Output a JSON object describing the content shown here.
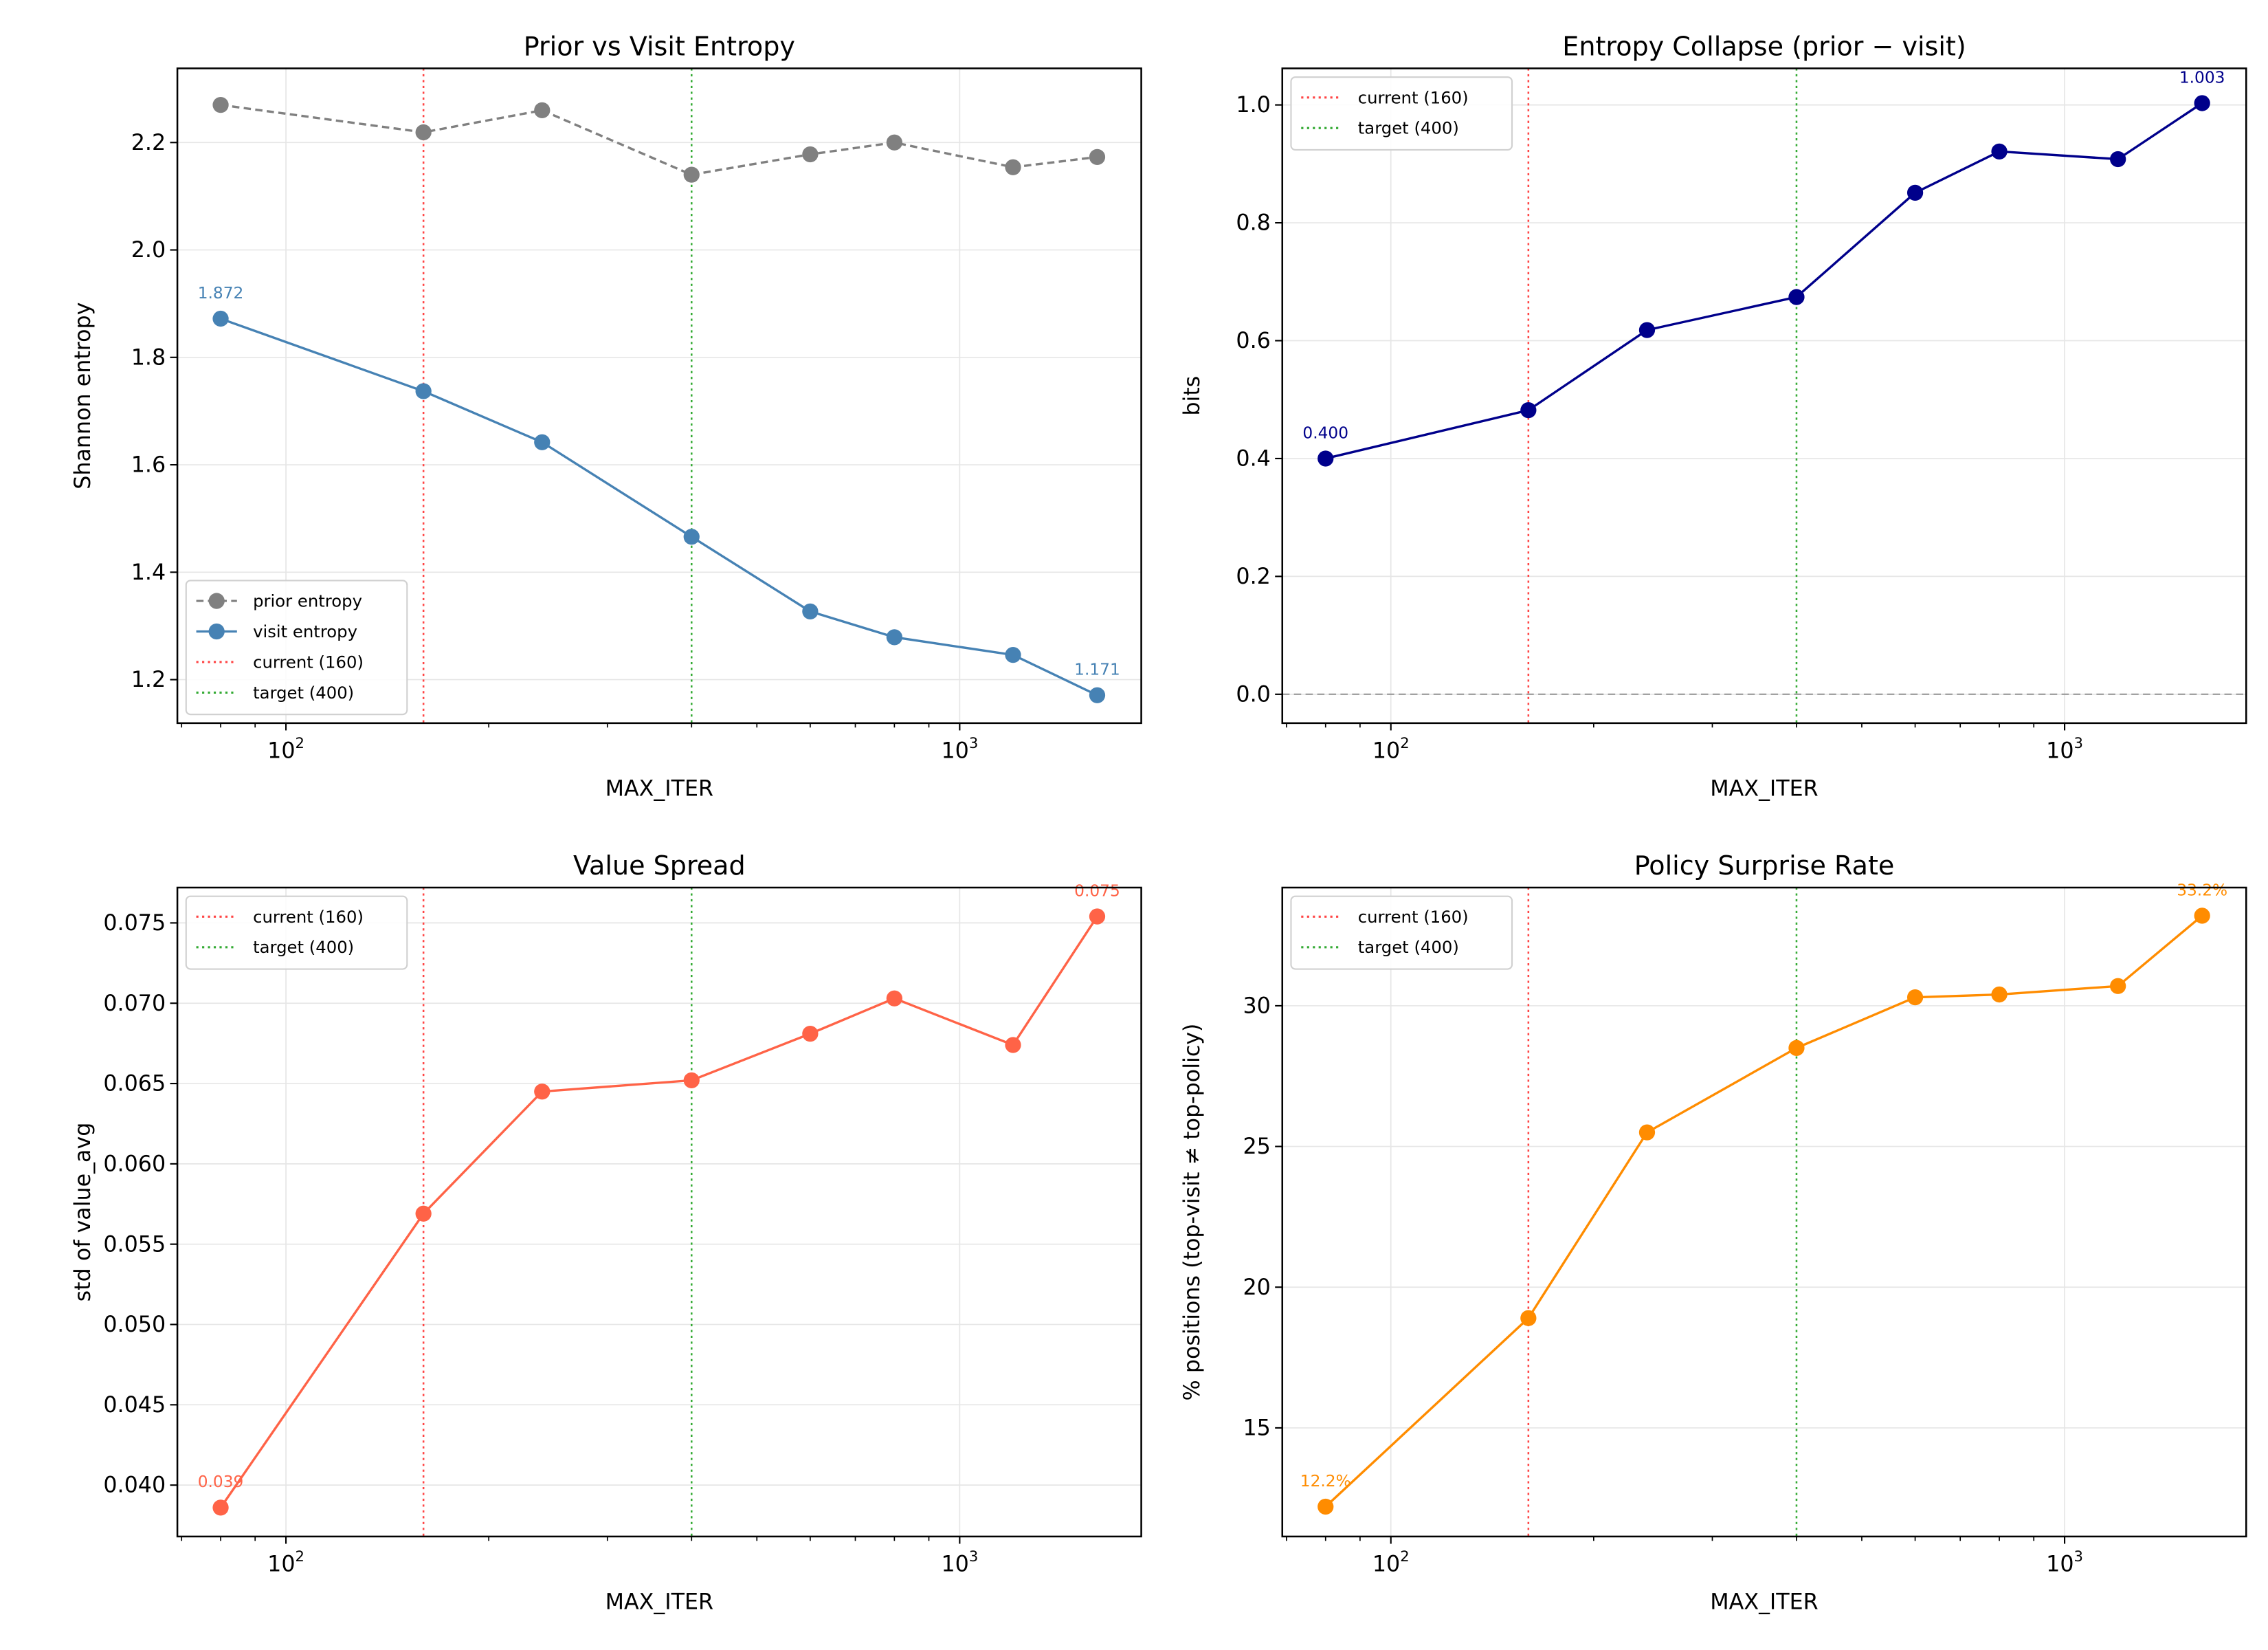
{
  "chart_data": [
    {
      "type": "line",
      "title": "Prior vs Visit Entropy",
      "xlabel": "MAX_ITER",
      "ylabel": "Shannon entropy",
      "xscale": "log",
      "xlim": [
        69,
        1860
      ],
      "ylim": [
        1.119,
        2.338
      ],
      "xticks": [
        {
          "value": 100,
          "base": "10",
          "exp": "2"
        },
        {
          "value": 1000,
          "base": "10",
          "exp": "3"
        }
      ],
      "yticks": [
        1.2,
        1.4,
        1.6,
        1.8,
        2.0,
        2.2
      ],
      "ytick_labels": [
        "1.2",
        "1.4",
        "1.6",
        "1.8",
        "2.0",
        "2.2"
      ],
      "grid": true,
      "legend": "lower-left",
      "x": [
        80,
        160,
        240,
        400,
        600,
        800,
        1200,
        1600
      ],
      "series": [
        {
          "name": "prior entropy",
          "color": "#808080",
          "dash": "dashed",
          "values": [
            2.27,
            2.219,
            2.26,
            2.14,
            2.178,
            2.2,
            2.154,
            2.173
          ]
        },
        {
          "name": "visit entropy",
          "color": "#4682b4",
          "dash": "solid",
          "values": [
            1.872,
            1.737,
            1.642,
            1.466,
            1.327,
            1.279,
            1.246,
            1.171
          ],
          "annotations": [
            "1.872",
            "1.171"
          ]
        }
      ],
      "vlines": [
        {
          "name": "current (160)",
          "x": 160,
          "color": "#ff4444"
        },
        {
          "name": "target (400)",
          "x": 400,
          "color": "#33aa33"
        }
      ]
    },
    {
      "type": "line",
      "title": "Entropy Collapse (prior − visit)",
      "xlabel": "MAX_ITER",
      "ylabel": "bits",
      "xscale": "log",
      "xlim": [
        69,
        1860
      ],
      "ylim": [
        -0.049,
        1.062
      ],
      "xticks": [
        {
          "value": 100,
          "base": "10",
          "exp": "2"
        },
        {
          "value": 1000,
          "base": "10",
          "exp": "3"
        }
      ],
      "yticks": [
        0.0,
        0.2,
        0.4,
        0.6,
        0.8,
        1.0
      ],
      "ytick_labels": [
        "0.0",
        "0.2",
        "0.4",
        "0.6",
        "0.8",
        "1.0"
      ],
      "grid": true,
      "legend": "upper-left",
      "hline": {
        "y": 0,
        "color": "#999999"
      },
      "x": [
        80,
        160,
        240,
        400,
        600,
        800,
        1200,
        1600
      ],
      "series": [
        {
          "color": "#00008b",
          "dash": "solid",
          "values": [
            0.4,
            0.482,
            0.618,
            0.674,
            0.851,
            0.921,
            0.908,
            1.003
          ],
          "annotations": [
            "0.400",
            "1.003"
          ]
        }
      ],
      "vlines": [
        {
          "name": "current (160)",
          "x": 160,
          "color": "#ff4444"
        },
        {
          "name": "target (400)",
          "x": 400,
          "color": "#33aa33"
        }
      ]
    },
    {
      "type": "line",
      "title": "Value Spread",
      "xlabel": "MAX_ITER",
      "ylabel": "std of value_avg",
      "xscale": "log",
      "xlim": [
        69,
        1860
      ],
      "ylim": [
        0.0368,
        0.0772
      ],
      "xticks": [
        {
          "value": 100,
          "base": "10",
          "exp": "2"
        },
        {
          "value": 1000,
          "base": "10",
          "exp": "3"
        }
      ],
      "yticks": [
        0.04,
        0.045,
        0.05,
        0.055,
        0.06,
        0.065,
        0.07,
        0.075
      ],
      "ytick_labels": [
        "0.040",
        "0.045",
        "0.050",
        "0.055",
        "0.060",
        "0.065",
        "0.070",
        "0.075"
      ],
      "grid": true,
      "legend": "upper-left",
      "x": [
        80,
        160,
        240,
        400,
        600,
        800,
        1200,
        1600
      ],
      "series": [
        {
          "color": "#ff6347",
          "dash": "solid",
          "values": [
            0.0386,
            0.0569,
            0.0645,
            0.0652,
            0.0681,
            0.0703,
            0.0674,
            0.0754
          ],
          "annotations": [
            "0.039",
            "0.075"
          ]
        }
      ],
      "vlines": [
        {
          "name": "current (160)",
          "x": 160,
          "color": "#ff4444"
        },
        {
          "name": "target (400)",
          "x": 400,
          "color": "#33aa33"
        }
      ]
    },
    {
      "type": "line",
      "title": "Policy Surprise Rate",
      "xlabel": "MAX_ITER",
      "ylabel": "% positions (top-visit ≠ top-policy)",
      "xscale": "log",
      "xlim": [
        69,
        1860
      ],
      "ylim": [
        11.14,
        34.2
      ],
      "xticks": [
        {
          "value": 100,
          "base": "10",
          "exp": "2"
        },
        {
          "value": 1000,
          "base": "10",
          "exp": "3"
        }
      ],
      "yticks": [
        15,
        20,
        25,
        30
      ],
      "ytick_labels": [
        "15",
        "20",
        "25",
        "30"
      ],
      "grid": true,
      "legend": "upper-left",
      "x": [
        80,
        160,
        240,
        400,
        600,
        800,
        1200,
        1600
      ],
      "series": [
        {
          "color": "#ff8c00",
          "dash": "solid",
          "values": [
            12.2,
            18.9,
            25.5,
            28.5,
            30.3,
            30.4,
            30.7,
            33.2
          ],
          "annotations": [
            "12.2%",
            "33.2%"
          ]
        }
      ],
      "vlines": [
        {
          "name": "current (160)",
          "x": 160,
          "color": "#ff4444"
        },
        {
          "name": "target (400)",
          "x": 400,
          "color": "#33aa33"
        }
      ]
    }
  ]
}
